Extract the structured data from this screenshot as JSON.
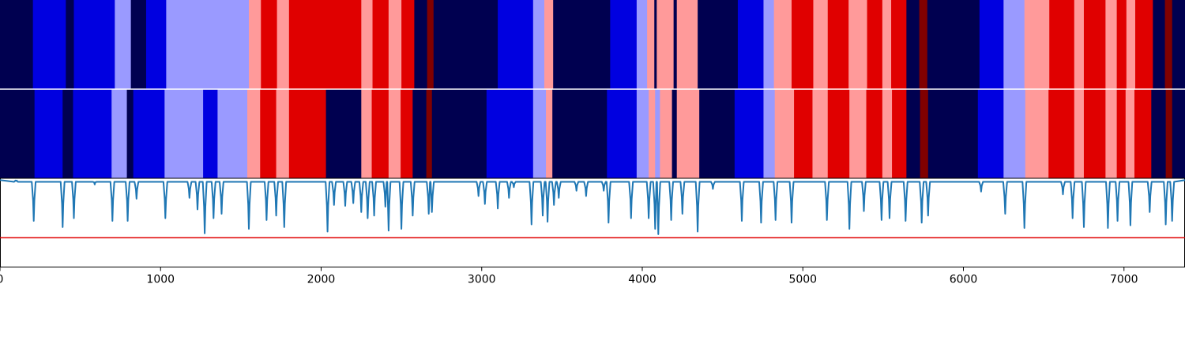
{
  "chart_data": {
    "type": "segmentation-track-comparison",
    "x_range": [
      0,
      7380
    ],
    "x_ticks": [
      0,
      1000,
      2000,
      3000,
      4000,
      5000,
      6000,
      7000
    ],
    "x_tick_labels": [
      "0",
      "1000",
      "2000",
      "3000",
      "4000",
      "5000",
      "6000",
      "7000"
    ],
    "palette": {
      "navy": "#000050",
      "blue": "#0000e0",
      "lavender": "#9a9aff",
      "pink": "#ff9a9a",
      "red": "#e00000",
      "darkred": "#800000",
      "confidence_line": "#1f77b4",
      "threshold_line": "#e00000"
    },
    "tracks": [
      {
        "segments": [
          [
            0,
            205,
            "navy"
          ],
          [
            205,
            410,
            "blue"
          ],
          [
            410,
            460,
            "navy"
          ],
          [
            460,
            715,
            "blue"
          ],
          [
            715,
            815,
            "lavender"
          ],
          [
            815,
            910,
            "navy"
          ],
          [
            910,
            1035,
            "blue"
          ],
          [
            1035,
            1550,
            "lavender"
          ],
          [
            1550,
            1625,
            "pink"
          ],
          [
            1625,
            1725,
            "red"
          ],
          [
            1725,
            1800,
            "pink"
          ],
          [
            1800,
            2250,
            "red"
          ],
          [
            2250,
            2320,
            "pink"
          ],
          [
            2320,
            2420,
            "red"
          ],
          [
            2420,
            2500,
            "pink"
          ],
          [
            2500,
            2580,
            "red"
          ],
          [
            2580,
            2660,
            "navy"
          ],
          [
            2660,
            2700,
            "darkred"
          ],
          [
            2700,
            3100,
            "navy"
          ],
          [
            3100,
            3320,
            "blue"
          ],
          [
            3320,
            3390,
            "lavender"
          ],
          [
            3390,
            3445,
            "pink"
          ],
          [
            3445,
            3800,
            "navy"
          ],
          [
            3800,
            3965,
            "blue"
          ],
          [
            3965,
            4030,
            "lavender"
          ],
          [
            4030,
            4075,
            "pink"
          ],
          [
            4075,
            4090,
            "navy"
          ],
          [
            4090,
            4195,
            "pink"
          ],
          [
            4195,
            4215,
            "navy"
          ],
          [
            4215,
            4345,
            "pink"
          ],
          [
            4345,
            4595,
            "navy"
          ],
          [
            4595,
            4755,
            "blue"
          ],
          [
            4755,
            4820,
            "lavender"
          ],
          [
            4820,
            4930,
            "pink"
          ],
          [
            4930,
            5065,
            "red"
          ],
          [
            5065,
            5155,
            "pink"
          ],
          [
            5155,
            5285,
            "red"
          ],
          [
            5285,
            5400,
            "pink"
          ],
          [
            5400,
            5495,
            "red"
          ],
          [
            5495,
            5550,
            "pink"
          ],
          [
            5550,
            5645,
            "red"
          ],
          [
            5645,
            5725,
            "navy"
          ],
          [
            5725,
            5775,
            "darkred"
          ],
          [
            5775,
            6100,
            "navy"
          ],
          [
            6100,
            6250,
            "blue"
          ],
          [
            6250,
            6380,
            "lavender"
          ],
          [
            6380,
            6535,
            "pink"
          ],
          [
            6535,
            6690,
            "red"
          ],
          [
            6690,
            6750,
            "pink"
          ],
          [
            6750,
            6885,
            "red"
          ],
          [
            6885,
            6955,
            "pink"
          ],
          [
            6955,
            7015,
            "red"
          ],
          [
            7015,
            7070,
            "pink"
          ],
          [
            7070,
            7180,
            "red"
          ],
          [
            7180,
            7255,
            "navy"
          ],
          [
            7255,
            7300,
            "darkred"
          ],
          [
            7300,
            7380,
            "navy"
          ]
        ]
      },
      {
        "segments": [
          [
            0,
            215,
            "navy"
          ],
          [
            215,
            390,
            "blue"
          ],
          [
            390,
            455,
            "navy"
          ],
          [
            455,
            695,
            "blue"
          ],
          [
            695,
            790,
            "lavender"
          ],
          [
            790,
            830,
            "navy"
          ],
          [
            830,
            1025,
            "blue"
          ],
          [
            1025,
            1265,
            "lavender"
          ],
          [
            1265,
            1355,
            "blue"
          ],
          [
            1355,
            1540,
            "lavender"
          ],
          [
            1540,
            1620,
            "pink"
          ],
          [
            1620,
            1720,
            "red"
          ],
          [
            1720,
            1800,
            "pink"
          ],
          [
            1800,
            2030,
            "red"
          ],
          [
            2030,
            2250,
            "navy"
          ],
          [
            2250,
            2315,
            "pink"
          ],
          [
            2315,
            2420,
            "red"
          ],
          [
            2420,
            2495,
            "pink"
          ],
          [
            2495,
            2570,
            "red"
          ],
          [
            2570,
            2655,
            "navy"
          ],
          [
            2655,
            2690,
            "darkred"
          ],
          [
            2690,
            3030,
            "navy"
          ],
          [
            3030,
            3320,
            "blue"
          ],
          [
            3320,
            3400,
            "lavender"
          ],
          [
            3400,
            3440,
            "pink"
          ],
          [
            3440,
            3780,
            "navy"
          ],
          [
            3780,
            3965,
            "blue"
          ],
          [
            3965,
            4040,
            "lavender"
          ],
          [
            4040,
            4080,
            "pink"
          ],
          [
            4080,
            4110,
            "lavender"
          ],
          [
            4110,
            4185,
            "pink"
          ],
          [
            4185,
            4215,
            "navy"
          ],
          [
            4215,
            4355,
            "pink"
          ],
          [
            4355,
            4575,
            "navy"
          ],
          [
            4575,
            4755,
            "blue"
          ],
          [
            4755,
            4825,
            "lavender"
          ],
          [
            4825,
            4945,
            "pink"
          ],
          [
            4945,
            5060,
            "red"
          ],
          [
            5060,
            5155,
            "pink"
          ],
          [
            5155,
            5290,
            "red"
          ],
          [
            5290,
            5395,
            "pink"
          ],
          [
            5395,
            5495,
            "red"
          ],
          [
            5495,
            5555,
            "pink"
          ],
          [
            5555,
            5645,
            "red"
          ],
          [
            5645,
            5730,
            "navy"
          ],
          [
            5730,
            5780,
            "darkred"
          ],
          [
            5780,
            6090,
            "navy"
          ],
          [
            6090,
            6250,
            "blue"
          ],
          [
            6250,
            6385,
            "lavender"
          ],
          [
            6385,
            6530,
            "pink"
          ],
          [
            6530,
            6690,
            "red"
          ],
          [
            6690,
            6750,
            "pink"
          ],
          [
            6750,
            6885,
            "red"
          ],
          [
            6885,
            6955,
            "pink"
          ],
          [
            6955,
            7010,
            "red"
          ],
          [
            7010,
            7065,
            "pink"
          ],
          [
            7065,
            7170,
            "red"
          ],
          [
            7170,
            7260,
            "navy"
          ],
          [
            7260,
            7300,
            "darkred"
          ],
          [
            7300,
            7380,
            "navy"
          ]
        ]
      }
    ],
    "confidence": {
      "y_range": [
        0,
        1
      ],
      "threshold": 0.33,
      "baseline": 0.98,
      "dips": [
        [
          0,
          0
        ],
        [
          100,
          0.97
        ],
        [
          210,
          0.52
        ],
        [
          390,
          0.45
        ],
        [
          460,
          0.55
        ],
        [
          590,
          0.93
        ],
        [
          700,
          0.52
        ],
        [
          795,
          0.52
        ],
        [
          850,
          0.77
        ],
        [
          1030,
          0.55
        ],
        [
          1180,
          0.78
        ],
        [
          1230,
          0.65
        ],
        [
          1275,
          0.38
        ],
        [
          1330,
          0.55
        ],
        [
          1380,
          0.6
        ],
        [
          1550,
          0.43
        ],
        [
          1660,
          0.53
        ],
        [
          1720,
          0.58
        ],
        [
          1770,
          0.45
        ],
        [
          2040,
          0.4
        ],
        [
          2080,
          0.7
        ],
        [
          2150,
          0.69
        ],
        [
          2200,
          0.72
        ],
        [
          2250,
          0.62
        ],
        [
          2290,
          0.55
        ],
        [
          2330,
          0.58
        ],
        [
          2400,
          0.68
        ],
        [
          2420,
          0.41
        ],
        [
          2500,
          0.43
        ],
        [
          2570,
          0.58
        ],
        [
          2670,
          0.6
        ],
        [
          2690,
          0.62
        ],
        [
          2980,
          0.8
        ],
        [
          3020,
          0.71
        ],
        [
          3100,
          0.66
        ],
        [
          3170,
          0.78
        ],
        [
          3200,
          0.9
        ],
        [
          3310,
          0.48
        ],
        [
          3380,
          0.58
        ],
        [
          3410,
          0.51
        ],
        [
          3450,
          0.7
        ],
        [
          3480,
          0.78
        ],
        [
          3590,
          0.86
        ],
        [
          3650,
          0.8
        ],
        [
          3760,
          0.86
        ],
        [
          3790,
          0.5
        ],
        [
          3930,
          0.55
        ],
        [
          4040,
          0.55
        ],
        [
          4080,
          0.43
        ],
        [
          4100,
          0.37
        ],
        [
          4180,
          0.53
        ],
        [
          4250,
          0.6
        ],
        [
          4345,
          0.4
        ],
        [
          4440,
          0.88
        ],
        [
          4620,
          0.52
        ],
        [
          4740,
          0.5
        ],
        [
          4830,
          0.53
        ],
        [
          4930,
          0.5
        ],
        [
          5150,
          0.53
        ],
        [
          5290,
          0.43
        ],
        [
          5380,
          0.63
        ],
        [
          5490,
          0.53
        ],
        [
          5540,
          0.55
        ],
        [
          5640,
          0.52
        ],
        [
          5740,
          0.5
        ],
        [
          5780,
          0.58
        ],
        [
          6110,
          0.85
        ],
        [
          6260,
          0.6
        ],
        [
          6380,
          0.44
        ],
        [
          6620,
          0.82
        ],
        [
          6680,
          0.55
        ],
        [
          6750,
          0.45
        ],
        [
          6900,
          0.44
        ],
        [
          6960,
          0.52
        ],
        [
          7040,
          0.47
        ],
        [
          7160,
          0.62
        ],
        [
          7260,
          0.48
        ],
        [
          7300,
          0.52
        ],
        [
          7380,
          0.98
        ]
      ]
    }
  }
}
